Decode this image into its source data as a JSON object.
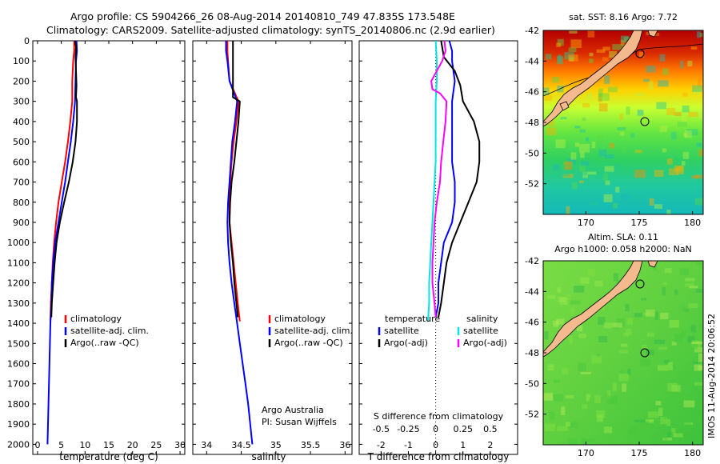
{
  "header": {
    "line1": "Argo profile: CS 5904266_26 08-Aug-2014 20140810_749 47.835S 173.548E",
    "line2": "Climatology: CARS2009. Satellite-adjusted climatology: synTS_20140806.nc (2.9d earlier)"
  },
  "footer": {
    "credit_line1": "Argo Australia",
    "credit_line2": "PI: Susan Wijffels",
    "stamp": "IMOS 11-Aug-2014 20:06:52"
  },
  "colors": {
    "climatology": "#ff0000",
    "satellite": "#0000ff",
    "argo": "#000000",
    "satellite_salinity": "#00e5e5",
    "argo_salinity": "#ff00ff",
    "land": "#f4b98c"
  },
  "chart_data": [
    {
      "type": "line",
      "id": "temperature",
      "xlabel": "temperature (deg C)",
      "ylabel": "",
      "xlim": [
        -1,
        31
      ],
      "ylim": [
        2050,
        0
      ],
      "xticks": [
        "0",
        "5",
        "10",
        "15",
        "20",
        "25",
        "30"
      ],
      "yticks": [
        "0",
        "100",
        "200",
        "300",
        "400",
        "500",
        "600",
        "700",
        "800",
        "900",
        "1000",
        "1100",
        "1200",
        "1300",
        "1400",
        "1500",
        "1600",
        "1700",
        "1800",
        "1900",
        "2000"
      ],
      "legend": [
        "climatology",
        "satellite-adj. clim.",
        "Argo(..raw -QC)"
      ],
      "series": [
        {
          "name": "climatology",
          "color": "#ff0000",
          "points": [
            [
              7.7,
              0
            ],
            [
              7.7,
              50
            ],
            [
              7.5,
              100
            ],
            [
              7.3,
              200
            ],
            [
              7.3,
              300
            ],
            [
              6.9,
              400
            ],
            [
              6.4,
              500
            ],
            [
              5.8,
              600
            ],
            [
              5.1,
              700
            ],
            [
              4.4,
              800
            ],
            [
              3.9,
              900
            ],
            [
              3.5,
              1000
            ],
            [
              3.2,
              1100
            ],
            [
              3.0,
              1200
            ],
            [
              2.8,
              1300
            ],
            [
              2.7,
              1390
            ]
          ]
        },
        {
          "name": "satellite-adj. clim.",
          "color": "#0000ff",
          "points": [
            [
              8.2,
              0
            ],
            [
              8.3,
              50
            ],
            [
              8.1,
              100
            ],
            [
              8.0,
              200
            ],
            [
              7.9,
              300
            ],
            [
              7.5,
              400
            ],
            [
              7.0,
              500
            ],
            [
              6.4,
              600
            ],
            [
              5.8,
              700
            ],
            [
              5.1,
              800
            ],
            [
              4.4,
              900
            ],
            [
              3.7,
              1000
            ],
            [
              3.3,
              1100
            ],
            [
              3.0,
              1200
            ],
            [
              2.9,
              1300
            ],
            [
              2.7,
              1400
            ],
            [
              2.6,
              1500
            ],
            [
              2.5,
              1600
            ],
            [
              2.4,
              1700
            ],
            [
              2.3,
              1800
            ],
            [
              2.2,
              1900
            ],
            [
              2.1,
              2000
            ]
          ]
        },
        {
          "name": "Argo(..raw -QC)",
          "color": "#000000",
          "points": [
            [
              7.9,
              0
            ],
            [
              8.1,
              30
            ],
            [
              8.0,
              80
            ],
            [
              8.1,
              150
            ],
            [
              8.2,
              220
            ],
            [
              8.1,
              280
            ],
            [
              8.3,
              300
            ],
            [
              8.3,
              400
            ],
            [
              8.0,
              500
            ],
            [
              7.4,
              600
            ],
            [
              6.6,
              700
            ],
            [
              5.6,
              800
            ],
            [
              4.7,
              900
            ],
            [
              4.0,
              1000
            ],
            [
              3.6,
              1100
            ],
            [
              3.3,
              1200
            ],
            [
              3.0,
              1300
            ],
            [
              2.9,
              1370
            ]
          ]
        }
      ]
    },
    {
      "type": "line",
      "id": "salinity",
      "xlabel": "salinity",
      "xlim": [
        33.8,
        36.1
      ],
      "ylim": [
        2050,
        0
      ],
      "xticks": [
        "34",
        "34.5",
        "35",
        "35.5",
        "36"
      ],
      "legend": [
        "climatology",
        "satellite-adj. clim.",
        "Argo(..raw -QC)"
      ],
      "series": [
        {
          "name": "climatology",
          "color": "#ff0000",
          "points": [
            [
              34.3,
              0
            ],
            [
              34.3,
              50
            ],
            [
              34.31,
              100
            ],
            [
              34.33,
              200
            ],
            [
              34.46,
              300
            ],
            [
              34.43,
              400
            ],
            [
              34.39,
              500
            ],
            [
              34.36,
              600
            ],
            [
              34.34,
              700
            ],
            [
              34.33,
              800
            ],
            [
              34.33,
              900
            ],
            [
              34.36,
              1000
            ],
            [
              34.39,
              1100
            ],
            [
              34.42,
              1200
            ],
            [
              34.45,
              1300
            ],
            [
              34.48,
              1390
            ]
          ]
        },
        {
          "name": "satellite-adj. clim.",
          "color": "#0000ff",
          "points": [
            [
              34.28,
              0
            ],
            [
              34.28,
              50
            ],
            [
              34.3,
              100
            ],
            [
              34.33,
              200
            ],
            [
              34.44,
              300
            ],
            [
              34.41,
              400
            ],
            [
              34.37,
              500
            ],
            [
              34.35,
              600
            ],
            [
              34.33,
              700
            ],
            [
              34.31,
              800
            ],
            [
              34.3,
              900
            ],
            [
              34.31,
              1000
            ],
            [
              34.33,
              1100
            ],
            [
              34.36,
              1200
            ],
            [
              34.4,
              1300
            ],
            [
              34.44,
              1400
            ],
            [
              34.48,
              1500
            ],
            [
              34.52,
              1600
            ],
            [
              34.56,
              1700
            ],
            [
              34.6,
              1800
            ],
            [
              34.63,
              1900
            ],
            [
              34.66,
              2000
            ]
          ]
        },
        {
          "name": "Argo(..raw -QC)",
          "color": "#000000",
          "points": [
            [
              34.38,
              0
            ],
            [
              34.38,
              50
            ],
            [
              34.38,
              100
            ],
            [
              34.38,
              200
            ],
            [
              34.38,
              280
            ],
            [
              34.48,
              300
            ],
            [
              34.46,
              400
            ],
            [
              34.43,
              500
            ],
            [
              34.4,
              600
            ],
            [
              34.36,
              700
            ],
            [
              34.34,
              800
            ],
            [
              34.33,
              900
            ],
            [
              34.35,
              1000
            ],
            [
              34.38,
              1100
            ],
            [
              34.4,
              1200
            ],
            [
              34.43,
              1300
            ],
            [
              34.45,
              1370
            ]
          ]
        }
      ]
    },
    {
      "type": "line",
      "id": "difference",
      "xlabel": "T difference from climatology",
      "xlabel_top": "S difference from climatology",
      "xlim_T": [
        -2.8,
        3.0
      ],
      "xlim_S": [
        -0.7,
        0.75
      ],
      "ylim": [
        2050,
        0
      ],
      "xticks_T": [
        "-2",
        "-1",
        "0",
        "1",
        "2"
      ],
      "xticks_S": [
        "-0.5",
        "-0.25",
        "0",
        "0.25",
        "0.5"
      ],
      "legend_headers": [
        "temperature",
        "salinity"
      ],
      "legend": [
        "satellite",
        "Argo(-adj)",
        "satellite",
        "Argo(-adj)"
      ],
      "series": [
        {
          "name": "satellite",
          "quantity": "temperature",
          "color": "#0000ff",
          "points": [
            [
              0.5,
              0
            ],
            [
              0.6,
              50
            ],
            [
              0.6,
              100
            ],
            [
              0.7,
              200
            ],
            [
              0.6,
              300
            ],
            [
              0.6,
              400
            ],
            [
              0.6,
              500
            ],
            [
              0.6,
              600
            ],
            [
              0.7,
              700
            ],
            [
              0.7,
              800
            ],
            [
              0.6,
              900
            ],
            [
              0.3,
              1000
            ],
            [
              0.2,
              1100
            ],
            [
              0.1,
              1200
            ],
            [
              0.1,
              1300
            ],
            [
              0.0,
              1370
            ]
          ]
        },
        {
          "name": "Argo(-adj)",
          "quantity": "temperature",
          "color": "#000000",
          "points": [
            [
              0.2,
              0
            ],
            [
              0.3,
              80
            ],
            [
              0.7,
              150
            ],
            [
              0.9,
              220
            ],
            [
              1.0,
              300
            ],
            [
              1.4,
              400
            ],
            [
              1.6,
              500
            ],
            [
              1.6,
              600
            ],
            [
              1.5,
              700
            ],
            [
              1.2,
              800
            ],
            [
              0.9,
              900
            ],
            [
              0.6,
              1000
            ],
            [
              0.4,
              1100
            ],
            [
              0.3,
              1200
            ],
            [
              0.2,
              1300
            ],
            [
              0.1,
              1370
            ]
          ]
        },
        {
          "name": "satellite",
          "quantity": "salinity",
          "color": "#00e5e5",
          "points": [
            [
              0.0,
              0
            ],
            [
              0.01,
              100
            ],
            [
              0.01,
              200
            ],
            [
              0.0,
              300
            ],
            [
              0.0,
              400
            ],
            [
              0.0,
              500
            ],
            [
              0.0,
              600
            ],
            [
              -0.01,
              700
            ],
            [
              -0.02,
              800
            ],
            [
              -0.03,
              900
            ],
            [
              -0.04,
              1000
            ],
            [
              -0.05,
              1100
            ],
            [
              -0.06,
              1200
            ],
            [
              -0.06,
              1300
            ],
            [
              -0.07,
              1390
            ]
          ]
        },
        {
          "name": "Argo(-adj)",
          "quantity": "salinity",
          "color": "#ff00ff",
          "points": [
            [
              0.08,
              0
            ],
            [
              0.09,
              50
            ],
            [
              0.06,
              100
            ],
            [
              -0.04,
              200
            ],
            [
              -0.03,
              240
            ],
            [
              0.04,
              260
            ],
            [
              0.1,
              300
            ],
            [
              0.09,
              400
            ],
            [
              0.07,
              500
            ],
            [
              0.05,
              600
            ],
            [
              0.04,
              700
            ],
            [
              0.01,
              800
            ],
            [
              -0.01,
              900
            ],
            [
              -0.02,
              1000
            ],
            [
              -0.03,
              1100
            ],
            [
              -0.03,
              1200
            ],
            [
              -0.01,
              1300
            ],
            [
              0.0,
              1370
            ]
          ]
        }
      ]
    },
    {
      "type": "heatmap",
      "id": "sst-map",
      "title": "sat. SST: 8.16  Argo: 7.72",
      "xticks": [
        "170",
        "175",
        "180"
      ],
      "yticks": [
        "-42",
        "-44",
        "-46",
        "-48",
        "-50",
        "-52"
      ],
      "xlim": [
        166,
        181
      ],
      "ylim": [
        -54,
        -42
      ],
      "float_position": [
        173.5,
        -47.8
      ]
    },
    {
      "type": "heatmap",
      "id": "sla-map",
      "title_line1": "Altim. SLA: 0.11",
      "title_line2": "Argo h1000: 0.058  h2000: NaN",
      "xticks": [
        "170",
        "175",
        "180"
      ],
      "yticks": [
        "-42",
        "-44",
        "-46",
        "-48",
        "-50",
        "-52"
      ],
      "xlim": [
        166,
        181
      ],
      "ylim": [
        -54,
        -42
      ],
      "float_position": [
        173.5,
        -47.8
      ]
    }
  ]
}
